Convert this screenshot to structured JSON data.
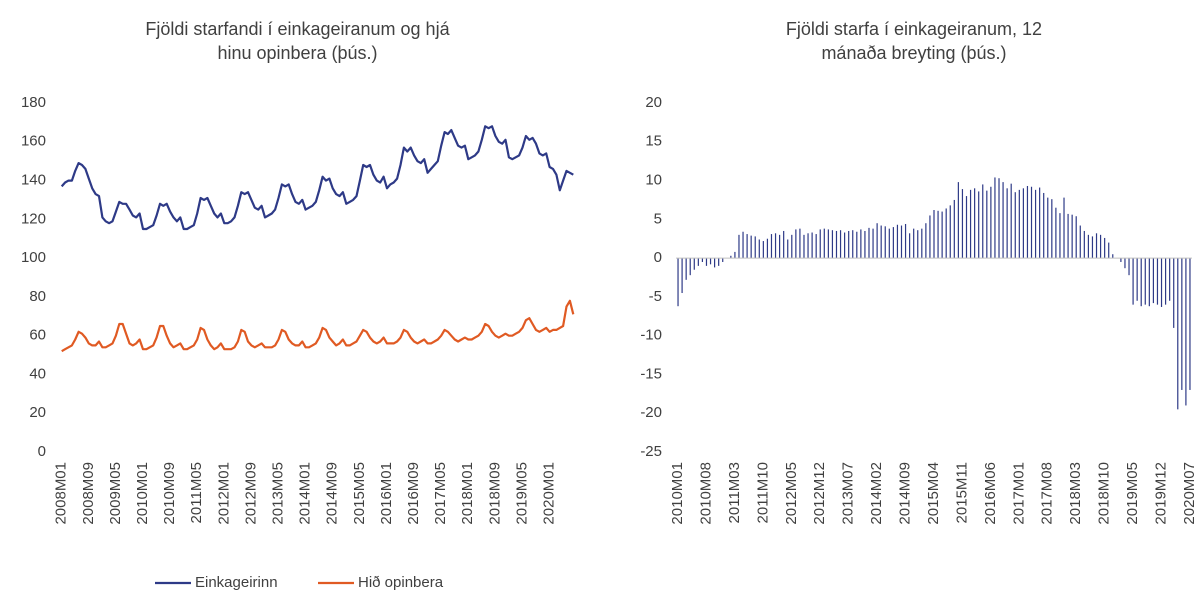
{
  "chart_data": [
    {
      "type": "line",
      "title": [
        "Fjöldi starfandi í einkageiranum og hjá",
        "hinu opinbera (þús.)"
      ],
      "categories": [
        "2008M01",
        null,
        null,
        null,
        null,
        null,
        null,
        null,
        "2008M09",
        null,
        null,
        null,
        null,
        null,
        null,
        null,
        "2009M05",
        null,
        null,
        null,
        null,
        null,
        null,
        null,
        "2010M01",
        null,
        null,
        null,
        null,
        null,
        null,
        null,
        "2010M09",
        null,
        null,
        null,
        null,
        null,
        null,
        null,
        "2011M05",
        null,
        null,
        null,
        null,
        null,
        null,
        null,
        "2012M01",
        null,
        null,
        null,
        null,
        null,
        null,
        null,
        "2012M09",
        null,
        null,
        null,
        null,
        null,
        null,
        null,
        "2013M05",
        null,
        null,
        null,
        null,
        null,
        null,
        null,
        "2014M01",
        null,
        null,
        null,
        null,
        null,
        null,
        null,
        "2014M09",
        null,
        null,
        null,
        null,
        null,
        null,
        null,
        "2015M05",
        null,
        null,
        null,
        null,
        null,
        null,
        null,
        "2016M01",
        null,
        null,
        null,
        null,
        null,
        null,
        null,
        "2016M09",
        null,
        null,
        null,
        null,
        null,
        null,
        null,
        "2017M05",
        null,
        null,
        null,
        null,
        null,
        null,
        null,
        "2018M01",
        null,
        null,
        null,
        null,
        null,
        null,
        null,
        "2018M09",
        null,
        null,
        null,
        null,
        null,
        null,
        null,
        "2019M05",
        null,
        null,
        null,
        null,
        null,
        null,
        null,
        "2020M01",
        null,
        null,
        null,
        null,
        null,
        null,
        null
      ],
      "series": [
        {
          "name": "Einkageirinn",
          "color": "#2e3a87",
          "values": [
            137,
            139,
            140,
            140,
            145,
            149,
            148,
            146,
            141,
            136,
            133,
            132,
            121,
            119,
            118,
            119,
            124,
            129,
            128,
            128,
            125,
            122,
            121,
            123,
            115,
            115,
            116,
            117,
            122,
            128,
            127,
            128,
            124,
            121,
            119,
            121,
            115,
            115,
            116,
            117,
            123,
            131,
            130,
            131,
            127,
            123,
            121,
            123,
            118,
            118,
            119,
            121,
            127,
            134,
            133,
            134,
            130,
            126,
            125,
            127,
            121,
            122,
            123,
            125,
            131,
            138,
            137,
            138,
            133,
            129,
            128,
            130,
            125,
            126,
            127,
            129,
            135,
            142,
            140,
            141,
            136,
            133,
            132,
            134,
            128,
            129,
            130,
            132,
            140,
            148,
            147,
            148,
            143,
            140,
            139,
            142,
            136,
            138,
            139,
            141,
            148,
            157,
            155,
            157,
            153,
            150,
            149,
            151,
            144,
            146,
            148,
            150,
            158,
            165,
            164,
            166,
            162,
            158,
            157,
            158,
            151,
            152,
            153,
            155,
            161,
            168,
            167,
            168,
            163,
            160,
            159,
            161,
            152,
            151,
            152,
            153,
            157,
            163,
            161,
            162,
            159,
            154,
            153,
            154,
            147,
            146,
            143,
            135,
            140,
            145,
            144,
            143
          ]
        },
        {
          "name": "Hið opinbera",
          "color": "#e05a23",
          "values": [
            52,
            53,
            54,
            55,
            58,
            62,
            61,
            59,
            56,
            55,
            55,
            57,
            54,
            54,
            55,
            56,
            60,
            66,
            66,
            61,
            56,
            55,
            56,
            58,
            53,
            53,
            54,
            55,
            59,
            65,
            65,
            60,
            56,
            54,
            55,
            56,
            53,
            53,
            54,
            55,
            58,
            64,
            63,
            58,
            55,
            53,
            54,
            56,
            53,
            53,
            53,
            54,
            57,
            63,
            62,
            57,
            55,
            54,
            55,
            56,
            54,
            54,
            54,
            55,
            58,
            63,
            62,
            58,
            56,
            55,
            55,
            57,
            54,
            54,
            55,
            56,
            59,
            64,
            63,
            59,
            57,
            55,
            56,
            58,
            55,
            55,
            56,
            57,
            60,
            63,
            62,
            59,
            57,
            56,
            57,
            59,
            56,
            56,
            56,
            57,
            59,
            63,
            62,
            59,
            57,
            56,
            57,
            58,
            56,
            56,
            57,
            58,
            60,
            63,
            62,
            60,
            58,
            57,
            58,
            59,
            58,
            58,
            59,
            60,
            62,
            66,
            65,
            62,
            60,
            59,
            60,
            61,
            60,
            60,
            61,
            62,
            64,
            68,
            69,
            66,
            63,
            62,
            63,
            64,
            62,
            63,
            63,
            64,
            65,
            75,
            78,
            71
          ]
        }
      ],
      "ylim": [
        0,
        180
      ],
      "yticks": [
        0,
        20,
        40,
        60,
        80,
        100,
        120,
        140,
        160,
        180
      ],
      "legend": "bottom-left"
    },
    {
      "type": "bar",
      "title": [
        "Fjöldi starfa í einkageiranum, 12",
        "mánaða breyting (þús.)"
      ],
      "categories": [
        "2010M01",
        null,
        null,
        null,
        null,
        null,
        null,
        "2010M08",
        null,
        null,
        null,
        null,
        null,
        null,
        "2011M03",
        null,
        null,
        null,
        null,
        null,
        null,
        "2011M10",
        null,
        null,
        null,
        null,
        null,
        null,
        "2012M05",
        null,
        null,
        null,
        null,
        null,
        null,
        "2012M12",
        null,
        null,
        null,
        null,
        null,
        null,
        "2013M07",
        null,
        null,
        null,
        null,
        null,
        null,
        "2014M02",
        null,
        null,
        null,
        null,
        null,
        null,
        "2014M09",
        null,
        null,
        null,
        null,
        null,
        null,
        "2015M04",
        null,
        null,
        null,
        null,
        null,
        null,
        "2015M11",
        null,
        null,
        null,
        null,
        null,
        null,
        "2016M06",
        null,
        null,
        null,
        null,
        null,
        null,
        "2017M01",
        null,
        null,
        null,
        null,
        null,
        null,
        "2017M08",
        null,
        null,
        null,
        null,
        null,
        null,
        "2018M03",
        null,
        null,
        null,
        null,
        null,
        null,
        "2018M10",
        null,
        null,
        null,
        null,
        null,
        null,
        "2019M05",
        null,
        null,
        null,
        null,
        null,
        null,
        "2019M12",
        null,
        null,
        null,
        null,
        null,
        null,
        "2020M07"
      ],
      "values": [
        -6.2,
        -4.5,
        -2.8,
        -2.2,
        -1.5,
        -1,
        -0.5,
        -1,
        -0.8,
        -1.2,
        -1,
        -0.5,
        0,
        0.3,
        0.8,
        3,
        3.4,
        3.1,
        2.9,
        2.8,
        2.4,
        2.2,
        2.5,
        3.1,
        3.2,
        3.0,
        3.5,
        2.4,
        3.0,
        3.7,
        3.8,
        3.0,
        3.2,
        3.3,
        3.1,
        3.7,
        3.8,
        3.7,
        3.6,
        3.5,
        3.6,
        3.3,
        3.5,
        3.6,
        3.4,
        3.7,
        3.5,
        3.9,
        3.8,
        4.5,
        4.2,
        4.1,
        3.8,
        4.0,
        4.3,
        4.2,
        4.4,
        3.2,
        3.8,
        3.6,
        3.8,
        4.5,
        5.5,
        6.2,
        6.1,
        6.0,
        6.4,
        6.8,
        7.5,
        9.8,
        8.9,
        8.0,
        8.8,
        9.0,
        8.6,
        9.5,
        8.7,
        9.2,
        10.4,
        10.3,
        9.8,
        9.0,
        9.6,
        8.5,
        8.8,
        9.0,
        9.3,
        9.2,
        8.8,
        9.1,
        8.4,
        7.8,
        7.6,
        6.5,
        5.8,
        7.8,
        5.7,
        5.6,
        5.4,
        4.2,
        3.5,
        3.0,
        2.8,
        3.2,
        3.0,
        2.6,
        2.0,
        0.5,
        0,
        -0.5,
        -1.3,
        -2.2,
        -6,
        -5.5,
        -6.2,
        -6,
        -6.2,
        -5.8,
        -6,
        -6.3,
        -6,
        -5.5,
        -9,
        -19.5,
        -17,
        -19,
        -17
      ],
      "color": "#2e3a87",
      "ylim": [
        -25,
        20
      ],
      "yticks": [
        -25,
        -20,
        -15,
        -10,
        -5,
        0,
        5,
        10,
        15,
        20
      ]
    }
  ]
}
